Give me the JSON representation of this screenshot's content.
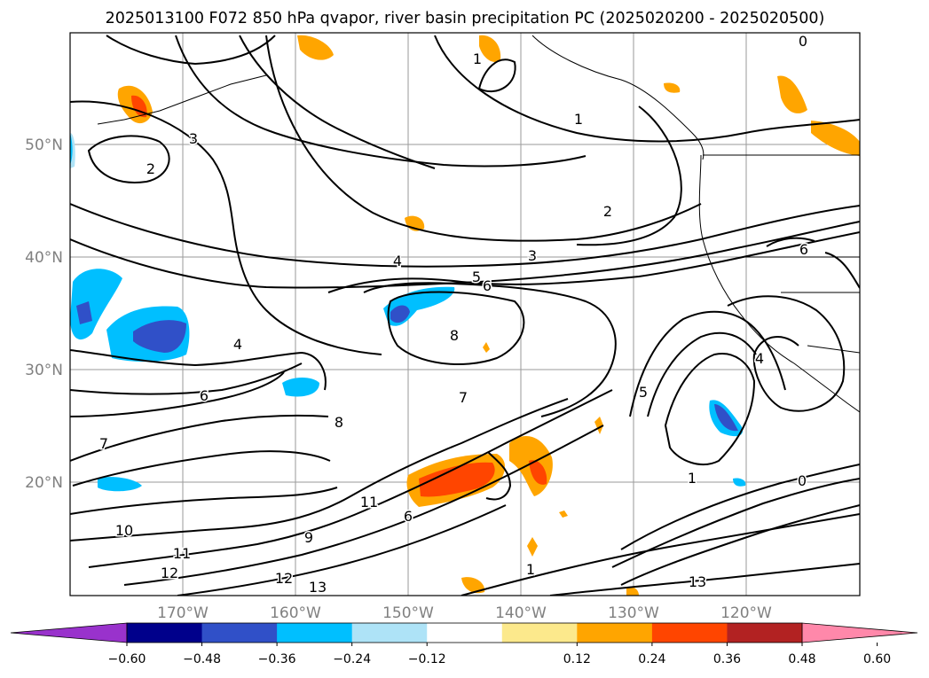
{
  "title": "2025013100 F072 850 hPa qvapor, river basin precipitation PC (2025020200 - 2025020500)",
  "map": {
    "lon_labels": [
      "170°W",
      "160°W",
      "150°W",
      "140°W",
      "130°W",
      "120°W"
    ],
    "lat_labels": [
      "50°N",
      "40°N",
      "30°N",
      "20°N"
    ],
    "contour_labels": [
      "0",
      "1",
      "1",
      "2",
      "2",
      "3",
      "3",
      "4",
      "4",
      "5",
      "6",
      "6",
      "7",
      "7",
      "8",
      "8",
      "9",
      "10",
      "11",
      "11",
      "12",
      "12",
      "13",
      "13",
      "6",
      "4",
      "1",
      "0",
      "1",
      "5",
      "6"
    ]
  },
  "colorbar": {
    "colors": [
      "#9932cc",
      "#00008b",
      "#3050c8",
      "#00bfff",
      "#aee3f7",
      "#ffffff",
      "#fce98c",
      "#ffa500",
      "#ff4500",
      "#b22222",
      "#ff88aa"
    ],
    "tick_labels": [
      "−0.60",
      "−0.48",
      "−0.36",
      "−0.24",
      "−0.12",
      "0.12",
      "0.24",
      "0.36",
      "0.48",
      "0.60"
    ]
  }
}
